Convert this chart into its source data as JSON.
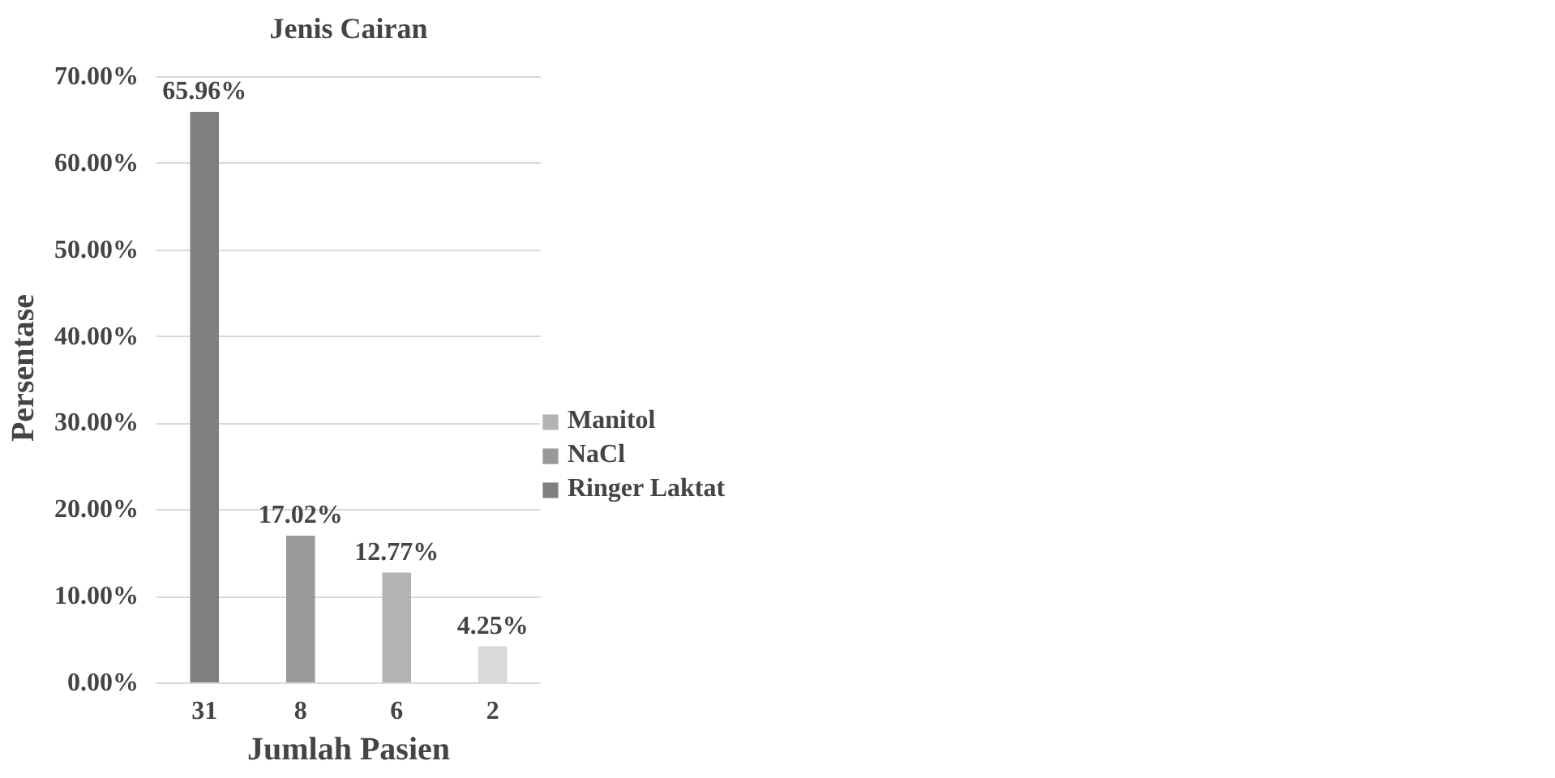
{
  "chart_data": {
    "type": "bar",
    "title": "Jenis Cairan",
    "xlabel": "Jumlah Pasien",
    "ylabel": "Persentase",
    "categories": [
      "31",
      "8",
      "6",
      "2"
    ],
    "series": [
      {
        "color": "#d9d9d9",
        "values": [
          null,
          null,
          null,
          4.25
        ],
        "value_labels": [
          null,
          null,
          null,
          "4.25%"
        ]
      },
      {
        "name": "Manitol",
        "color": "#b3b3b3",
        "values": [
          null,
          null,
          12.77,
          null
        ],
        "value_labels": [
          null,
          null,
          "12.77%",
          null
        ]
      },
      {
        "name": "NaCl",
        "color": "#999999",
        "values": [
          null,
          17.02,
          null,
          null
        ],
        "value_labels": [
          null,
          "17.02%",
          null,
          null
        ]
      },
      {
        "name": "Ringer Laktat",
        "color": "#808080",
        "values": [
          65.96,
          null,
          null,
          null
        ],
        "value_labels": [
          "65.96%",
          null,
          null,
          null
        ]
      }
    ],
    "ylim": [
      0,
      70
    ],
    "yticks": [
      {
        "value": 0,
        "label": "0.00%"
      },
      {
        "value": 10,
        "label": "10.00%"
      },
      {
        "value": 20,
        "label": "20.00%"
      },
      {
        "value": 30,
        "label": "30.00%"
      },
      {
        "value": 40,
        "label": "40.00%"
      },
      {
        "value": 50,
        "label": "50.00%"
      },
      {
        "value": 60,
        "label": "60.00%"
      },
      {
        "value": 70,
        "label": "70.00%"
      }
    ],
    "grid": "y",
    "legend": "right"
  }
}
